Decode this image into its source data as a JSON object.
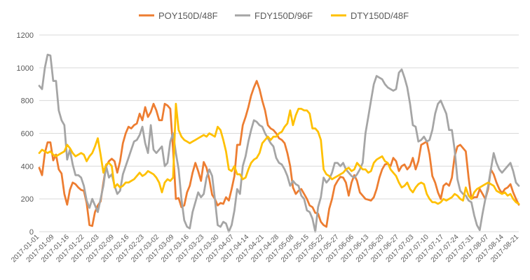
{
  "chart_data": {
    "type": "line",
    "title": "",
    "xlabel": "",
    "ylabel": "",
    "ylim": [
      0,
      1200
    ],
    "yticks": [
      0,
      200,
      400,
      600,
      800,
      1000,
      1200
    ],
    "grid": "horizontal",
    "legend_position": "top",
    "x_tick_labels": [
      "2017-01-01",
      "2017-01-09",
      "2017-01-16",
      "2017-01-22",
      "2017-02-03",
      "2017-02-09",
      "2017-02-16",
      "2017-02-23",
      "2017-03-02",
      "2017-03-09",
      "2017-03-16",
      "2017-03-23",
      "2017-03-30",
      "2017-04-07",
      "2017-04-14",
      "2017-04-21",
      "2017-04-28",
      "2017-05-08",
      "2017-05-15",
      "2017-05-22",
      "2017-05-27",
      "2017-06-06",
      "2017-06-13",
      "2017-06-20",
      "2017-06-27",
      "2017-07-03",
      "2017-07-10",
      "2017-07-17",
      "2017-07-24",
      "2017-07-31",
      "2017-08-07",
      "2017-08-14",
      "2017-08-21"
    ],
    "series": [
      {
        "name": "POY150D/48F",
        "color": "#ED7D31",
        "values": [
          390,
          345,
          480,
          545,
          545,
          435,
          470,
          380,
          355,
          230,
          165,
          255,
          300,
          290,
          270,
          255,
          250,
          175,
          40,
          35,
          120,
          160,
          185,
          300,
          400,
          430,
          445,
          430,
          360,
          430,
          540,
          600,
          640,
          630,
          650,
          660,
          720,
          680,
          760,
          700,
          730,
          780,
          740,
          680,
          680,
          780,
          770,
          750,
          500,
          200,
          205,
          150,
          160,
          240,
          280,
          360,
          420,
          370,
          310,
          425,
          390,
          320,
          225,
          200,
          160,
          175,
          170,
          210,
          190,
          260,
          340,
          530,
          530,
          650,
          700,
          760,
          830,
          880,
          920,
          870,
          800,
          740,
          650,
          630,
          620,
          600,
          570,
          560,
          540,
          480,
          400,
          270,
          230,
          250,
          260,
          230,
          200,
          160,
          150,
          115,
          110,
          60,
          40,
          30,
          140,
          200,
          280,
          310,
          335,
          330,
          300,
          220,
          300,
          345,
          310,
          240,
          220,
          200,
          195,
          190,
          210,
          260,
          330,
          380,
          410,
          415,
          400,
          450,
          430,
          370,
          400,
          410,
          380,
          400,
          450,
          380,
          430,
          530,
          540,
          550,
          470,
          340,
          300,
          240,
          200,
          280,
          295,
          280,
          330,
          460,
          520,
          530,
          510,
          490,
          330,
          200,
          210,
          210,
          260,
          230,
          200,
          260,
          380,
          350,
          300,
          260,
          235,
          260,
          270,
          290,
          240,
          200,
          165
        ]
      },
      {
        "name": "FDY150D/96F",
        "color": "#A5A5A5",
        "values": [
          890,
          870,
          1000,
          1080,
          1075,
          920,
          920,
          740,
          680,
          650,
          440,
          500,
          410,
          345,
          345,
          330,
          280,
          190,
          145,
          200,
          160,
          120,
          200,
          280,
          400,
          330,
          350,
          280,
          230,
          250,
          350,
          400,
          450,
          500,
          550,
          560,
          590,
          640,
          540,
          480,
          650,
          500,
          480,
          500,
          520,
          400,
          420,
          550,
          600,
          480,
          380,
          200,
          70,
          30,
          20,
          120,
          180,
          240,
          210,
          230,
          330,
          380,
          340,
          200,
          40,
          30,
          60,
          50,
          0,
          40,
          130,
          260,
          230,
          400,
          460,
          550,
          620,
          680,
          670,
          650,
          640,
          600,
          570,
          540,
          520,
          450,
          420,
          410,
          380,
          340,
          280,
          310,
          290,
          280,
          220,
          200,
          130,
          120,
          80,
          0,
          150,
          210,
          330,
          300,
          320,
          360,
          420,
          420,
          400,
          420,
          380,
          360,
          340,
          330,
          350,
          380,
          420,
          600,
          700,
          800,
          900,
          950,
          940,
          930,
          900,
          880,
          870,
          860,
          870,
          970,
          990,
          940,
          880,
          780,
          650,
          640,
          550,
          560,
          580,
          550,
          560,
          620,
          720,
          780,
          800,
          760,
          720,
          620,
          620,
          500,
          320,
          250,
          230,
          220,
          190,
          180,
          100,
          40,
          10,
          110,
          200,
          280,
          380,
          480,
          420,
          380,
          360,
          380,
          400,
          420,
          370,
          300,
          280
        ]
      },
      {
        "name": "DTY150D/48F",
        "color": "#FFC000",
        "values": [
          480,
          500,
          490,
          480,
          490,
          470,
          460,
          470,
          480,
          490,
          530,
          510,
          480,
          460,
          470,
          480,
          470,
          430,
          460,
          480,
          520,
          570,
          470,
          360,
          410,
          420,
          400,
          270,
          290,
          270,
          280,
          300,
          300,
          310,
          320,
          340,
          360,
          340,
          350,
          370,
          360,
          350,
          330,
          300,
          240,
          300,
          320,
          310,
          330,
          780,
          620,
          580,
          560,
          550,
          540,
          550,
          560,
          570,
          580,
          590,
          580,
          600,
          590,
          580,
          640,
          620,
          560,
          490,
          380,
          370,
          400,
          350,
          350,
          320,
          330,
          380,
          420,
          440,
          450,
          480,
          540,
          560,
          580,
          560,
          580,
          580,
          600,
          610,
          640,
          660,
          740,
          650,
          710,
          750,
          750,
          740,
          740,
          720,
          630,
          630,
          610,
          560,
          380,
          350,
          340,
          320,
          330,
          340,
          350,
          360,
          380,
          390,
          370,
          380,
          420,
          400,
          380,
          380,
          360,
          370,
          420,
          440,
          450,
          460,
          430,
          420,
          380,
          360,
          340,
          300,
          270,
          280,
          300,
          260,
          240,
          270,
          290,
          300,
          290,
          230,
          200,
          180,
          180,
          170,
          180,
          200,
          190,
          200,
          210,
          230,
          220,
          200,
          190,
          270,
          220,
          200,
          240,
          260,
          270,
          280,
          290,
          300,
          290,
          280,
          250,
          240,
          230,
          240,
          220,
          230,
          200,
          180,
          170
        ]
      }
    ]
  }
}
